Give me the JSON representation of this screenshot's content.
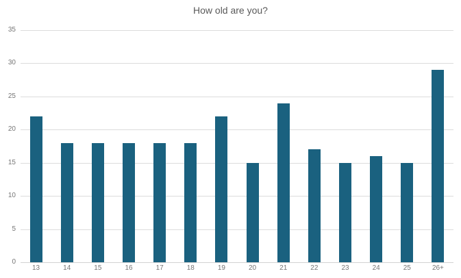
{
  "chart_data": {
    "type": "bar",
    "title": "How old are you?",
    "categories": [
      "13",
      "14",
      "15",
      "16",
      "17",
      "18",
      "19",
      "20",
      "21",
      "22",
      "23",
      "24",
      "25",
      "26+"
    ],
    "values": [
      22,
      18,
      18,
      18,
      18,
      18,
      22,
      15,
      24,
      17,
      15,
      16,
      15,
      29
    ],
    "xlabel": "",
    "ylabel": "",
    "ylim": [
      0,
      35
    ],
    "yticks": [
      0,
      5,
      10,
      15,
      20,
      25,
      30,
      35
    ],
    "grid": true,
    "legend": false,
    "colors": {
      "bar": "#1a617f",
      "title_text": "#595959",
      "axis_text": "#757575",
      "gridline": "#dcdcdc"
    }
  }
}
